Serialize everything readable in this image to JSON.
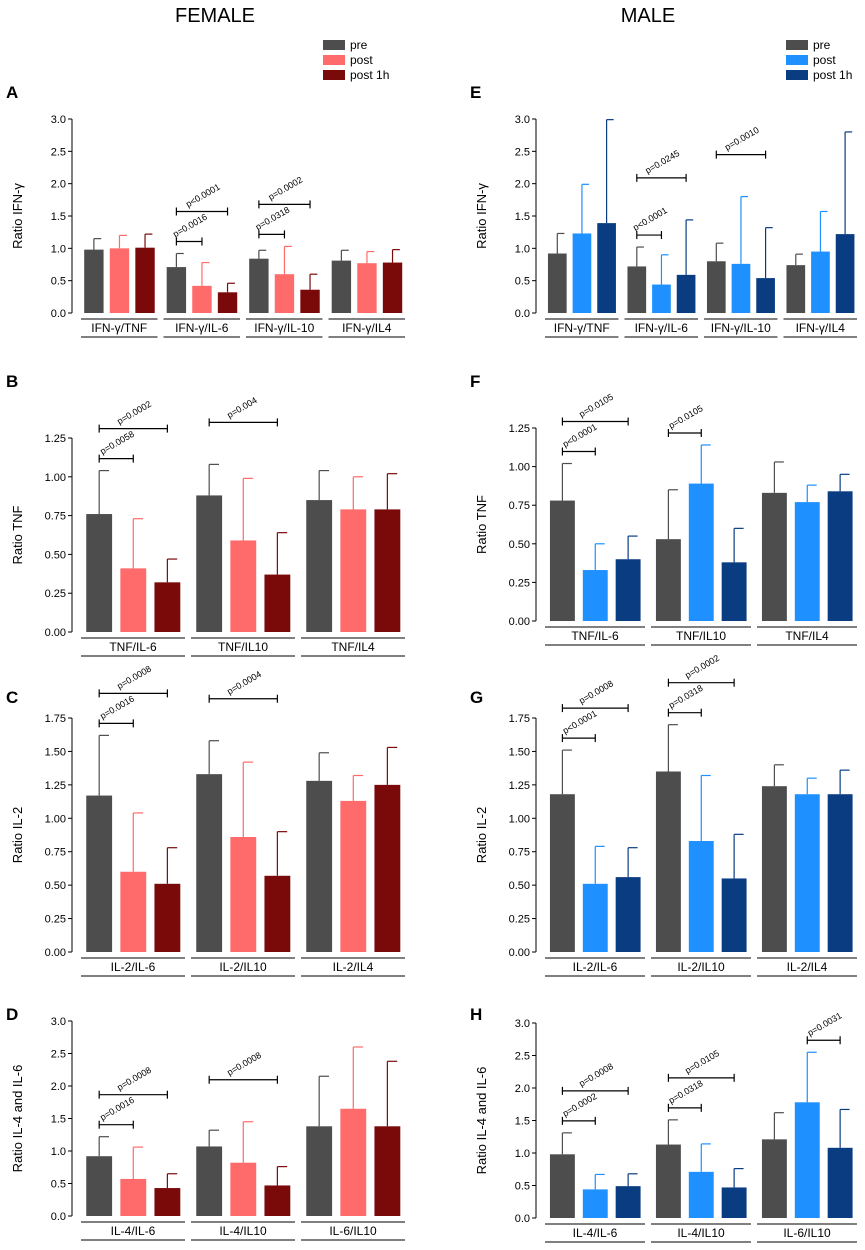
{
  "column_titles": [
    "FEMALE",
    "MALE"
  ],
  "colors": {
    "pre": "#4d4d4d",
    "female_post": "#ff6a6a",
    "female_post1h": "#7a0a0a",
    "male_post": "#1e90ff",
    "male_post1h": "#0a3c82"
  },
  "legends": [
    {
      "items": [
        {
          "label": "pre",
          "color": "#4d4d4d"
        },
        {
          "label": "post",
          "color": "#ff6a6a"
        },
        {
          "label": "post 1h",
          "color": "#7a0a0a"
        }
      ]
    },
    {
      "items": [
        {
          "label": "pre",
          "color": "#4d4d4d"
        },
        {
          "label": "post",
          "color": "#1e90ff"
        },
        {
          "label": "post 1h",
          "color": "#0a3c82"
        }
      ]
    }
  ],
  "chart_data": [
    {
      "panel": "A",
      "type": "bar",
      "ylabel": "Ratio IFN-γ",
      "ylim": [
        0,
        3.0
      ],
      "yticks": [
        0,
        0.5,
        1.0,
        1.5,
        2.0,
        2.5,
        3.0
      ],
      "ytick_labels": [
        "0.0",
        "0.5",
        "1.0",
        "1.5",
        "2.0",
        "2.5",
        "3.0"
      ],
      "categories": [
        "IFN-γ/TNF",
        "IFN-γ/IL-6",
        "IFN-γ/IL-10",
        "IFN-γ/IL4"
      ],
      "series": [
        {
          "name": "pre",
          "values": [
            0.98,
            0.71,
            0.84,
            0.81
          ],
          "errors": [
            0.17,
            0.21,
            0.13,
            0.16
          ]
        },
        {
          "name": "post",
          "values": [
            1.0,
            0.42,
            0.6,
            0.77
          ],
          "errors": [
            0.2,
            0.36,
            0.43,
            0.18
          ]
        },
        {
          "name": "post 1h",
          "values": [
            1.01,
            0.32,
            0.36,
            0.78
          ],
          "errors": [
            0.21,
            0.14,
            0.24,
            0.2
          ]
        }
      ],
      "annotations": [
        {
          "text": "p=0.0016",
          "cat": 1,
          "from": 0,
          "to": 1
        },
        {
          "text": "p<0.0001",
          "cat": 1,
          "from": 0,
          "to": 2
        },
        {
          "text": "p=0.0318",
          "cat": 2,
          "from": 0,
          "to": 1
        },
        {
          "text": "p=0.0002",
          "cat": 2,
          "from": 0,
          "to": 2
        }
      ]
    },
    {
      "panel": "B",
      "type": "bar",
      "ylabel": "Ratio TNF",
      "ylim": [
        0,
        1.25
      ],
      "yticks": [
        0,
        0.25,
        0.5,
        0.75,
        1.0,
        1.25
      ],
      "ytick_labels": [
        "0.00",
        "0.25",
        "0.50",
        "0.75",
        "1.00",
        "1.25"
      ],
      "categories": [
        "TNF/IL-6",
        "TNF/IL10",
        "TNF/IL4"
      ],
      "series": [
        {
          "name": "pre",
          "values": [
            0.76,
            0.88,
            0.85
          ],
          "errors": [
            0.28,
            0.2,
            0.19
          ]
        },
        {
          "name": "post",
          "values": [
            0.41,
            0.59,
            0.79
          ],
          "errors": [
            0.32,
            0.4,
            0.21
          ]
        },
        {
          "name": "post 1h",
          "values": [
            0.32,
            0.37,
            0.79
          ],
          "errors": [
            0.15,
            0.27,
            0.23
          ]
        }
      ],
      "annotations": [
        {
          "text": "p=0.0058",
          "cat": 0,
          "from": 0,
          "to": 1
        },
        {
          "text": "p=0.0002",
          "cat": 0,
          "from": 0,
          "to": 2
        },
        {
          "text": "p=0.004",
          "cat": 1,
          "from": 0,
          "to": 2
        }
      ]
    },
    {
      "panel": "C",
      "type": "bar",
      "ylabel": "Ratio IL-2",
      "ylim": [
        0,
        1.75
      ],
      "yticks": [
        0,
        0.25,
        0.5,
        0.75,
        1.0,
        1.25,
        1.5,
        1.75
      ],
      "ytick_labels": [
        "0.00",
        "0.25",
        "0.50",
        "0.75",
        "1.00",
        "1.25",
        "1.50",
        "1.75"
      ],
      "categories": [
        "IL-2/IL-6",
        "IL-2/IL10",
        "IL-2/IL4"
      ],
      "series": [
        {
          "name": "pre",
          "values": [
            1.17,
            1.33,
            1.28
          ],
          "errors": [
            0.45,
            0.25,
            0.21
          ]
        },
        {
          "name": "post",
          "values": [
            0.6,
            0.86,
            1.13
          ],
          "errors": [
            0.44,
            0.56,
            0.19
          ]
        },
        {
          "name": "post 1h",
          "values": [
            0.51,
            0.57,
            1.25
          ],
          "errors": [
            0.27,
            0.33,
            0.28
          ]
        }
      ],
      "annotations": [
        {
          "text": "p=0.0016",
          "cat": 0,
          "from": 0,
          "to": 1
        },
        {
          "text": "p=0.0008",
          "cat": 0,
          "from": 0,
          "to": 2
        },
        {
          "text": "p=0.0004",
          "cat": 1,
          "from": 0,
          "to": 2
        }
      ]
    },
    {
      "panel": "D",
      "type": "bar",
      "ylabel": "Ratio IL-4 and IL-6",
      "ylim": [
        0,
        3.0
      ],
      "yticks": [
        0,
        0.5,
        1.0,
        1.5,
        2.0,
        2.5,
        3.0
      ],
      "ytick_labels": [
        "0.0",
        "0.5",
        "1.0",
        "1.5",
        "2.0",
        "2.5",
        "3.0"
      ],
      "categories": [
        "IL-4/IL-6",
        "IL-4/IL10",
        "IL-6/IL10"
      ],
      "series": [
        {
          "name": "pre",
          "values": [
            0.92,
            1.07,
            1.38
          ],
          "errors": [
            0.3,
            0.25,
            0.77
          ]
        },
        {
          "name": "post",
          "values": [
            0.57,
            0.82,
            1.65
          ],
          "errors": [
            0.49,
            0.63,
            0.95
          ]
        },
        {
          "name": "post 1h",
          "values": [
            0.43,
            0.47,
            1.38
          ],
          "errors": [
            0.22,
            0.29,
            1.0
          ]
        }
      ],
      "annotations": [
        {
          "text": "p=0.0016",
          "cat": 0,
          "from": 0,
          "to": 1
        },
        {
          "text": "p=0.0008",
          "cat": 0,
          "from": 0,
          "to": 2
        },
        {
          "text": "p=0.0008",
          "cat": 1,
          "from": 0,
          "to": 2
        }
      ]
    },
    {
      "panel": "E",
      "type": "bar",
      "ylabel": "Ratio IFN-γ",
      "ylim": [
        0,
        3.0
      ],
      "yticks": [
        0,
        0.5,
        1.0,
        1.5,
        2.0,
        2.5,
        3.0
      ],
      "ytick_labels": [
        "0.0",
        "0.5",
        "1.0",
        "1.5",
        "2.0",
        "2.5",
        "3.0"
      ],
      "categories": [
        "IFN-γ/TNF",
        "IFN-γ/IL-6",
        "IFN-γ/IL-10",
        "IFN-γ/IL4"
      ],
      "series": [
        {
          "name": "pre",
          "values": [
            0.92,
            0.72,
            0.8,
            0.74
          ],
          "errors": [
            0.31,
            0.3,
            0.28,
            0.17
          ]
        },
        {
          "name": "post",
          "values": [
            1.23,
            0.44,
            0.76,
            0.95
          ],
          "errors": [
            0.76,
            0.46,
            1.04,
            0.62
          ]
        },
        {
          "name": "post 1h",
          "values": [
            1.39,
            0.59,
            0.54,
            1.22
          ],
          "errors": [
            1.6,
            0.85,
            0.78,
            1.58
          ]
        }
      ],
      "annotations": [
        {
          "text": "p<0.0001",
          "cat": 1,
          "from": 0,
          "to": 1
        },
        {
          "text": "p=0.0245",
          "cat": 1,
          "from": 0,
          "to": 2
        },
        {
          "text": "p=0.0010",
          "cat": 2,
          "from": 0,
          "to": 2
        }
      ]
    },
    {
      "panel": "F",
      "type": "bar",
      "ylabel": "Ratio TNF",
      "ylim": [
        0,
        1.25
      ],
      "yticks": [
        0,
        0.25,
        0.5,
        0.75,
        1.0,
        1.25
      ],
      "ytick_labels": [
        "0.00",
        "0.25",
        "0.50",
        "0.75",
        "1.00",
        "1.25"
      ],
      "categories": [
        "TNF/IL-6",
        "TNF/IL10",
        "TNF/IL4"
      ],
      "series": [
        {
          "name": "pre",
          "values": [
            0.78,
            0.53,
            0.83
          ],
          "errors": [
            0.24,
            0.32,
            0.2
          ]
        },
        {
          "name": "post",
          "values": [
            0.33,
            0.89,
            0.77
          ],
          "errors": [
            0.17,
            0.25,
            0.11
          ]
        },
        {
          "name": "post 1h",
          "values": [
            0.4,
            0.38,
            0.84
          ],
          "errors": [
            0.15,
            0.22,
            0.11
          ]
        }
      ],
      "annotations": [
        {
          "text": "p<0.0001",
          "cat": 0,
          "from": 0,
          "to": 1
        },
        {
          "text": "p=0.0105",
          "cat": 0,
          "from": 0,
          "to": 2
        },
        {
          "text": "p=0.0105",
          "cat": 1,
          "from": 0,
          "to": 1
        }
      ]
    },
    {
      "panel": "G",
      "type": "bar",
      "ylabel": "Ratio IL-2",
      "ylim": [
        0,
        1.75
      ],
      "yticks": [
        0,
        0.25,
        0.5,
        0.75,
        1.0,
        1.25,
        1.5,
        1.75
      ],
      "ytick_labels": [
        "0.00",
        "0.25",
        "0.50",
        "0.75",
        "1.00",
        "1.25",
        "1.50",
        "1.75"
      ],
      "categories": [
        "IL-2/IL-6",
        "IL-2/IL10",
        "IL-2/IL4"
      ],
      "series": [
        {
          "name": "pre",
          "values": [
            1.18,
            1.35,
            1.24
          ],
          "errors": [
            0.33,
            0.35,
            0.16
          ]
        },
        {
          "name": "post",
          "values": [
            0.51,
            0.83,
            1.18
          ],
          "errors": [
            0.28,
            0.49,
            0.12
          ]
        },
        {
          "name": "post 1h",
          "values": [
            0.56,
            0.55,
            1.18
          ],
          "errors": [
            0.22,
            0.33,
            0.18
          ]
        }
      ],
      "annotations": [
        {
          "text": "p<0.0001",
          "cat": 0,
          "from": 0,
          "to": 1
        },
        {
          "text": "p=0.0008",
          "cat": 0,
          "from": 0,
          "to": 2
        },
        {
          "text": "p=0.0318",
          "cat": 1,
          "from": 0,
          "to": 1
        },
        {
          "text": "p=0.0002",
          "cat": 1,
          "from": 0,
          "to": 2
        }
      ]
    },
    {
      "panel": "H",
      "type": "bar",
      "ylabel": "Ratio IL-4 and IL-6",
      "ylim": [
        0,
        3.0
      ],
      "yticks": [
        0,
        0.5,
        1.0,
        1.5,
        2.0,
        2.5,
        3.0
      ],
      "ytick_labels": [
        "0.0",
        "0.5",
        "1.0",
        "1.5",
        "2.0",
        "2.5",
        "3.0"
      ],
      "categories": [
        "IL-4/IL-6",
        "IL-4/IL10",
        "IL-6/IL10"
      ],
      "series": [
        {
          "name": "pre",
          "values": [
            0.98,
            1.13,
            1.21
          ],
          "errors": [
            0.33,
            0.38,
            0.41
          ]
        },
        {
          "name": "post",
          "values": [
            0.44,
            0.71,
            1.78
          ],
          "errors": [
            0.23,
            0.43,
            0.77
          ]
        },
        {
          "name": "post 1h",
          "values": [
            0.49,
            0.47,
            1.08
          ],
          "errors": [
            0.19,
            0.29,
            0.59
          ]
        }
      ],
      "annotations": [
        {
          "text": "p=0.0002",
          "cat": 0,
          "from": 0,
          "to": 1
        },
        {
          "text": "p=0.0008",
          "cat": 0,
          "from": 0,
          "to": 2
        },
        {
          "text": "p=0.0318",
          "cat": 1,
          "from": 0,
          "to": 1
        },
        {
          "text": "p=0.0105",
          "cat": 1,
          "from": 0,
          "to": 2
        },
        {
          "text": "p=0.0031",
          "cat": 2,
          "from": 1,
          "to": 2
        }
      ]
    }
  ]
}
